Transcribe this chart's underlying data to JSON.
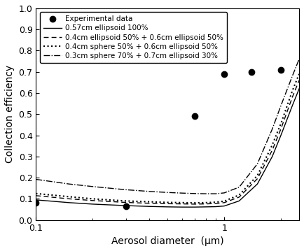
{
  "title": "",
  "xlabel": "Aerosol diameter  (μm)",
  "ylabel": "Collection efficiency",
  "xlim_log": [
    0.1,
    2.5
  ],
  "ylim": [
    0.0,
    1.0
  ],
  "yticks": [
    0.0,
    0.1,
    0.2,
    0.3,
    0.4,
    0.5,
    0.6,
    0.7,
    0.8,
    0.9,
    1.0
  ],
  "experimental_x": [
    0.1,
    0.3,
    0.7,
    1.0,
    1.4,
    2.0
  ],
  "experimental_y": [
    0.08,
    0.065,
    0.49,
    0.69,
    0.7,
    0.71
  ],
  "line1_label": "0.57cm ellipsoid 100%",
  "line2_label": "0.4cm ellipsoid 50% + 0.6cm ellipsoid 50%",
  "line3_label": "0.4cm sphere 50% + 0.6cm ellipsoid 50%",
  "line4_label": "0.3cm sphere 70% + 0.7cm ellipsoid 30%",
  "line1_x": [
    0.1,
    0.15,
    0.2,
    0.3,
    0.4,
    0.5,
    0.6,
    0.7,
    0.8,
    0.9,
    1.0,
    1.2,
    1.5,
    1.8,
    2.0,
    2.3,
    2.5
  ],
  "line1_y": [
    0.095,
    0.082,
    0.075,
    0.068,
    0.064,
    0.062,
    0.061,
    0.061,
    0.062,
    0.063,
    0.066,
    0.09,
    0.17,
    0.3,
    0.4,
    0.54,
    0.62
  ],
  "line2_x": [
    0.1,
    0.15,
    0.2,
    0.3,
    0.4,
    0.5,
    0.6,
    0.7,
    0.8,
    0.9,
    1.0,
    1.2,
    1.5,
    1.8,
    2.0,
    2.3,
    2.5
  ],
  "line2_y": [
    0.115,
    0.1,
    0.092,
    0.083,
    0.079,
    0.077,
    0.076,
    0.075,
    0.076,
    0.078,
    0.082,
    0.108,
    0.195,
    0.33,
    0.43,
    0.58,
    0.66
  ],
  "line3_x": [
    0.1,
    0.15,
    0.2,
    0.3,
    0.4,
    0.5,
    0.6,
    0.7,
    0.8,
    0.9,
    1.0,
    1.2,
    1.5,
    1.8,
    2.0,
    2.3,
    2.5
  ],
  "line3_y": [
    0.125,
    0.11,
    0.1,
    0.09,
    0.086,
    0.083,
    0.082,
    0.081,
    0.082,
    0.084,
    0.089,
    0.118,
    0.21,
    0.355,
    0.455,
    0.61,
    0.69
  ],
  "line4_x": [
    0.1,
    0.15,
    0.2,
    0.3,
    0.4,
    0.5,
    0.6,
    0.7,
    0.8,
    0.9,
    1.0,
    1.2,
    1.5,
    1.8,
    2.0,
    2.3,
    2.5
  ],
  "line4_y": [
    0.192,
    0.17,
    0.158,
    0.143,
    0.135,
    0.13,
    0.127,
    0.125,
    0.124,
    0.124,
    0.128,
    0.155,
    0.265,
    0.43,
    0.54,
    0.68,
    0.76
  ],
  "line_color": "#000000",
  "exp_color": "#000000",
  "background_color": "#ffffff",
  "legend_loc": "upper left",
  "fontsize_label": 10,
  "fontsize_legend": 7.5,
  "fontsize_tick": 9
}
